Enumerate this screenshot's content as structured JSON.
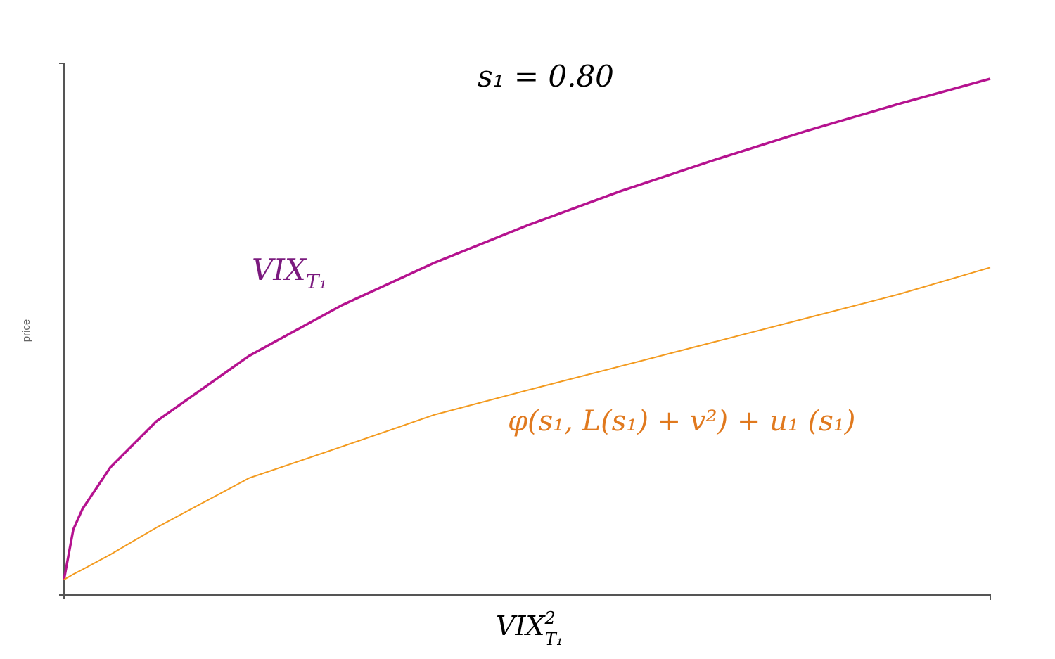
{
  "chart_data": {
    "type": "line",
    "title": "s₁ = 0.80",
    "xlabel": "VIX",
    "xlabel_superscript": "2",
    "xlabel_subscript": "T₁",
    "ylabel": "price",
    "x": [
      0,
      1,
      2,
      5,
      10,
      20,
      30,
      40,
      50,
      60,
      70,
      80,
      90,
      100
    ],
    "xlim": [
      0,
      100
    ],
    "ylim": [
      0,
      100
    ],
    "series": [
      {
        "name": "VIX",
        "name_subscript": "T₁",
        "color": "#b5128f",
        "label_color": "#7b1a7e",
        "values": [
          2.9,
          12.3,
          16.2,
          24.0,
          32.7,
          45.0,
          54.5,
          62.5,
          69.5,
          75.9,
          81.7,
          87.2,
          92.3,
          97.1
        ]
      },
      {
        "name": "φ(s₁, L(s₁) + v²) + u₁ (s₁)",
        "color": "#f39a1e",
        "label_color": "#e0791e",
        "values": [
          2.9,
          3.9,
          4.8,
          7.6,
          12.7,
          22.0,
          27.9,
          33.9,
          38.5,
          43.0,
          47.5,
          52.0,
          56.5,
          61.6
        ]
      }
    ]
  }
}
